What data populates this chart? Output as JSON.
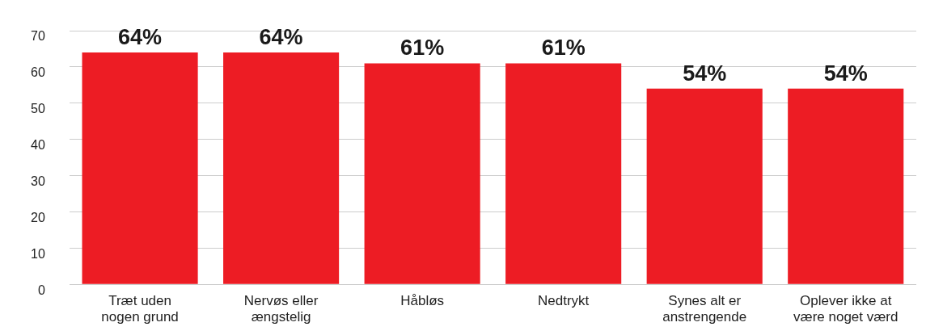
{
  "chart_data": {
    "type": "bar",
    "categories": [
      "Træt uden nogen grund",
      "Nervøs eller ængstelig",
      "Håbløs",
      "Nedtrykt",
      "Synes alt er anstrengende",
      "Oplever ikke at være noget værd"
    ],
    "values": [
      64,
      64,
      61,
      61,
      54,
      54
    ],
    "value_labels": [
      "64%",
      "64%",
      "61%",
      "61%",
      "54%",
      "54%"
    ],
    "color": "#ed1c24",
    "ylim": [
      0,
      70
    ],
    "yticks": [
      0,
      10,
      20,
      30,
      40,
      50,
      60,
      70
    ],
    "grid": "y",
    "legend": false
  }
}
